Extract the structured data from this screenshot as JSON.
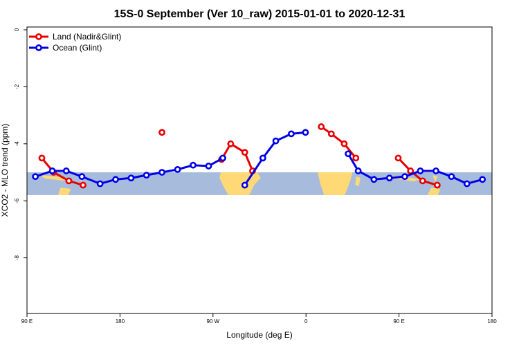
{
  "chart_data": {
    "type": "line",
    "title": "15S-0 September (Ver 10_raw)   2015-01-01 to 2020-12-31",
    "xlabel": "Longitude (deg E)",
    "ylabel": "XCO2 - MLO trend (ppm)",
    "xlim": [
      90,
      450
    ],
    "ylim": [
      0,
      -10
    ],
    "x_ticks": [
      {
        "value": 90,
        "label": "90 E"
      },
      {
        "value": 162,
        "label": "180"
      },
      {
        "value": 234,
        "label": "90 W"
      },
      {
        "value": 306,
        "label": "0"
      },
      {
        "value": 378,
        "label": "90 E"
      },
      {
        "value": 450,
        "label": "180"
      }
    ],
    "y_ticks": [
      0,
      -2,
      -4,
      -6,
      -8
    ],
    "grid": false,
    "legend_position": "top-left",
    "map_band": {
      "y_top": -5.0,
      "y_bottom": -5.8,
      "ocean_color": "#A7BCDC",
      "land_color": "#FFD976"
    },
    "series": [
      {
        "name": "Land (Nadir&Glint)",
        "color": "#E60000",
        "segments": [
          [
            [
              101.5,
              -4.5
            ],
            [
              110.6,
              -5.0
            ],
            [
              122.4,
              -5.3
            ],
            [
              133.4,
              -5.45
            ]
          ],
          [
            [
              194.5,
              -3.6
            ]
          ],
          [
            [
              240.6,
              -4.55
            ],
            [
              247.7,
              -4.0
            ],
            [
              258.6,
              -4.3
            ],
            [
              264.6,
              -4.95
            ]
          ],
          [
            [
              317.8,
              -3.4
            ],
            [
              325.6,
              -3.65
            ],
            [
              335.6,
              -4.0
            ],
            [
              344.6,
              -4.5
            ]
          ],
          [
            [
              377.4,
              -4.5
            ],
            [
              386.9,
              -4.95
            ],
            [
              396.3,
              -5.3
            ],
            [
              407.6,
              -5.45
            ]
          ]
        ]
      },
      {
        "name": "Ocean (Glint)",
        "color": "#0000E6",
        "segments": [
          [
            [
              96.5,
              -5.15
            ],
            [
              109.6,
              -4.95
            ],
            [
              120.4,
              -4.95
            ],
            [
              132.5,
              -5.15
            ],
            [
              146.6,
              -5.4
            ],
            [
              158.6,
              -5.25
            ],
            [
              170.6,
              -5.2
            ],
            [
              182.5,
              -5.1
            ],
            [
              194.5,
              -5.0
            ],
            [
              206.6,
              -4.9
            ],
            [
              218.6,
              -4.75
            ],
            [
              230.6,
              -4.78
            ],
            [
              241.6,
              -4.5
            ]
          ],
          [
            [
              258.6,
              -5.45
            ],
            [
              272.6,
              -4.5
            ],
            [
              282.6,
              -3.9
            ],
            [
              294.6,
              -3.65
            ],
            [
              305.6,
              -3.6
            ]
          ],
          [
            [
              338.6,
              -4.35
            ],
            [
              346.4,
              -4.95
            ],
            [
              358.6,
              -5.25
            ],
            [
              370.6,
              -5.2
            ],
            [
              382.5,
              -5.15
            ],
            [
              394.5,
              -4.95
            ],
            [
              406.6,
              -4.95
            ],
            [
              418.6,
              -5.15
            ],
            [
              430.6,
              -5.4
            ],
            [
              442.6,
              -5.25
            ]
          ]
        ]
      }
    ]
  }
}
